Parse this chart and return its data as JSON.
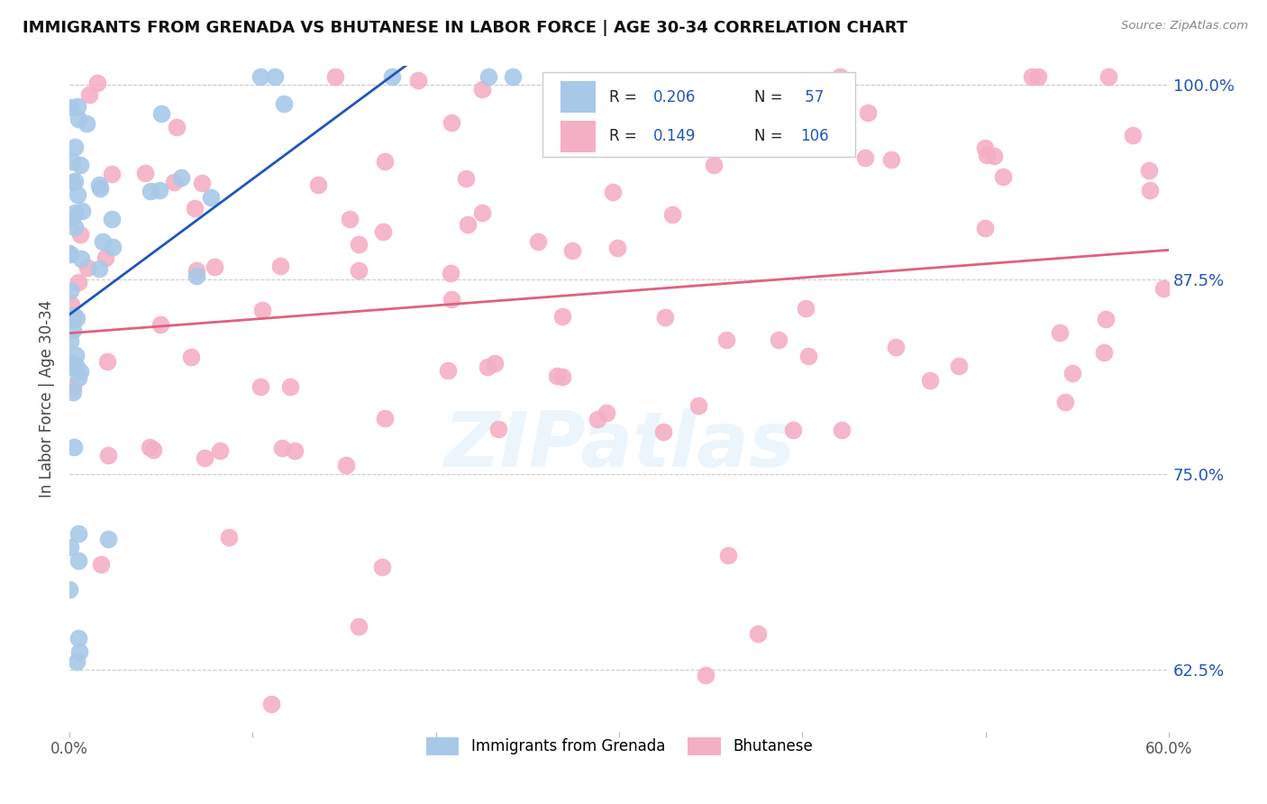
{
  "title": "IMMIGRANTS FROM GRENADA VS BHUTANESE IN LABOR FORCE | AGE 30-34 CORRELATION CHART",
  "source": "Source: ZipAtlas.com",
  "ylabel": "In Labor Force | Age 30-34",
  "xlim": [
    0.0,
    0.6
  ],
  "ylim": [
    0.585,
    1.012
  ],
  "ytick_labels": [
    "62.5%",
    "75.0%",
    "87.5%",
    "100.0%"
  ],
  "ytick_positions": [
    0.625,
    0.75,
    0.875,
    1.0
  ],
  "R_grenada": 0.206,
  "N_grenada": 57,
  "R_bhutanese": 0.149,
  "N_bhutanese": 106,
  "color_grenada": "#a8c8e8",
  "color_bhutanese": "#f4afc4",
  "line_color_grenada": "#2255bb",
  "line_color_bhutanese": "#e06080",
  "text_color": "#222222",
  "blue_color": "#2255bb",
  "background_color": "#ffffff",
  "watermark": "ZIPatlas"
}
